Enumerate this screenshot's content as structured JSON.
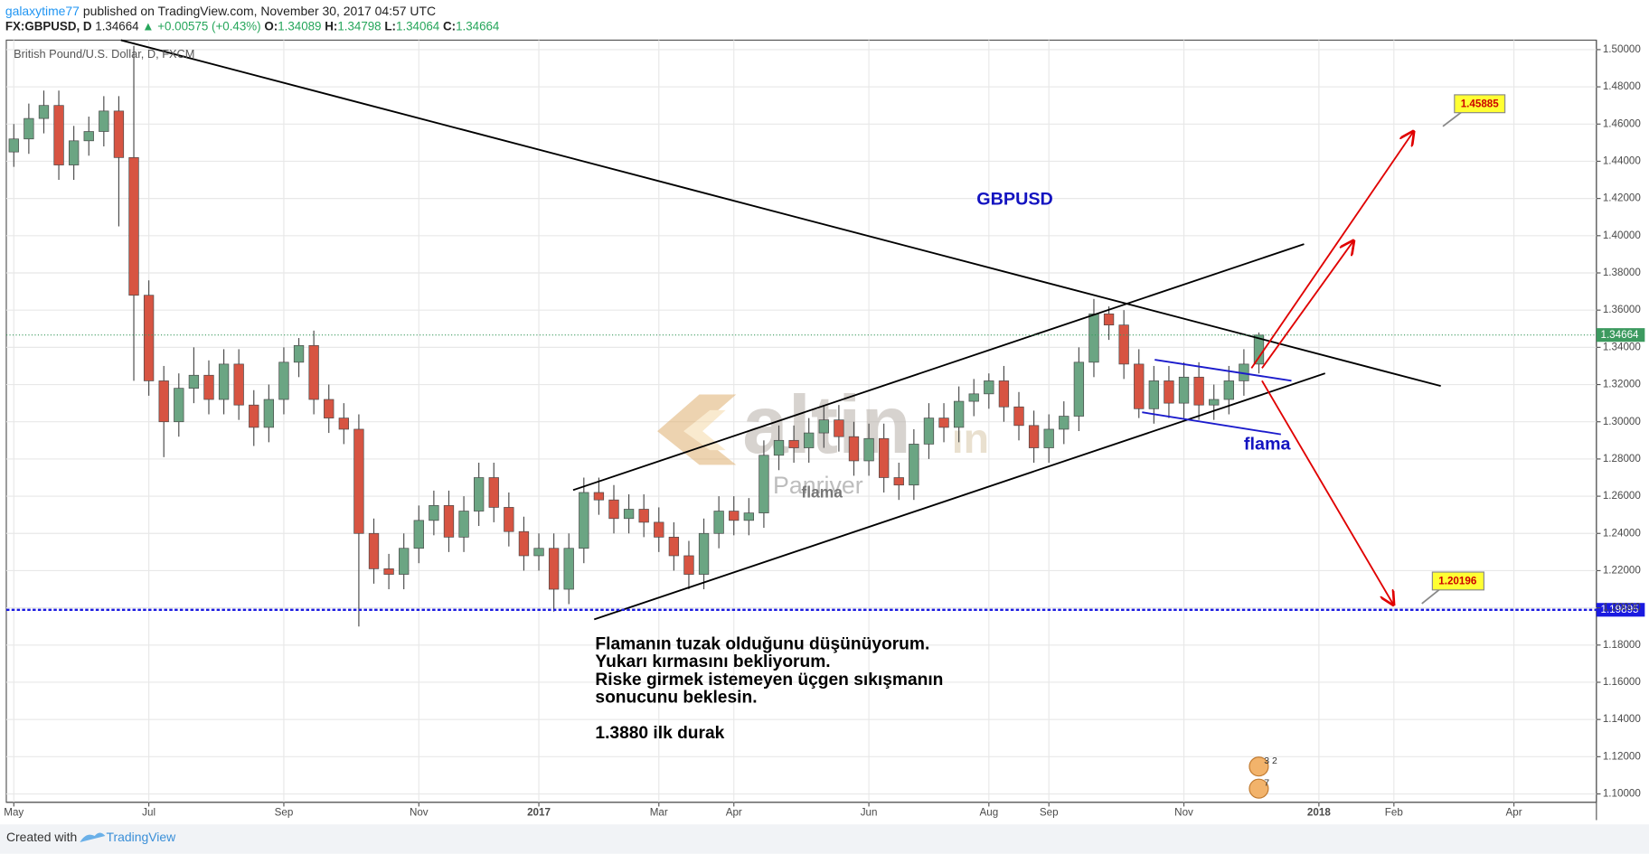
{
  "header": {
    "author": "galaxytime77",
    "published": "published on TradingView.com, November 30, 2017 04:57 UTC",
    "symbol": "FX:GBPUSD, D",
    "price": "1.34664",
    "change": "▲ +0.00575 (+0.43%)",
    "open_label": "O:",
    "open": "1.34089",
    "high_label": "H:",
    "high": "1.34798",
    "low_label": "L:",
    "low": "1.34064",
    "close_label": "C:",
    "close": "1.34664"
  },
  "annotations": {
    "symbol": "GBPUSD",
    "flag": "flama",
    "watermark_flag": "flama",
    "watermark": "altin",
    "watermark_suffix": "in",
    "watermark_sub": "Panriver",
    "target_up": "1.45885",
    "target_down": "1.20196",
    "note": [
      "Flamanın tuzak olduğunu düşünüyorum.",
      "Yukarı kırmasını bekliyorum.",
      "Riske girmek istemeyen üçgen sıkışmanın",
      "sonucunu beklesin.",
      "1.3880 ilk durak"
    ],
    "badge_top": "3 2",
    "badge_bottom": "7"
  },
  "footer": {
    "created_with": "Created with",
    "brand": "TradingView"
  },
  "chart_data": {
    "type": "candlestick",
    "title": "British Pound/U.S. Dollar, D, FXCM",
    "up_color": "#6ba583",
    "down_color": "#d75442",
    "grid": true,
    "categories": [
      "May",
      null,
      null,
      null,
      null,
      null,
      null,
      null,
      null,
      "Jul",
      null,
      null,
      null,
      null,
      null,
      null,
      null,
      null,
      "Sep",
      null,
      null,
      null,
      null,
      null,
      null,
      null,
      null,
      "Nov",
      null,
      null,
      null,
      null,
      null,
      null,
      null,
      "2017",
      null,
      null,
      null,
      null,
      null,
      null,
      null,
      "Mar",
      null,
      null,
      null,
      null,
      "Apr",
      null,
      null,
      null,
      null,
      null,
      null,
      null,
      null,
      "Jun",
      null,
      null,
      null,
      null,
      null,
      null,
      null,
      "Aug",
      null,
      null,
      null,
      "Sep",
      null,
      null,
      null,
      null,
      null,
      null,
      null,
      null,
      "Nov",
      null,
      null,
      null,
      null,
      null,
      null,
      null,
      null,
      "2018",
      null,
      null,
      null,
      null,
      "Feb",
      null,
      null,
      null,
      null,
      null,
      null,
      null,
      "Apr",
      null,
      null,
      null,
      null,
      null
    ],
    "open": [
      1.445,
      1.452,
      1.463,
      1.47,
      1.438,
      1.451,
      1.456,
      1.467,
      1.442,
      1.368,
      1.322,
      1.3,
      1.318,
      1.325,
      1.312,
      1.331,
      1.309,
      1.297,
      1.312,
      1.332,
      1.341,
      1.312,
      1.302,
      1.296,
      1.24,
      1.221,
      1.218,
      1.232,
      1.247,
      1.255,
      1.238,
      1.252,
      1.27,
      1.254,
      1.241,
      1.228,
      1.232,
      1.21,
      1.232,
      1.262,
      1.258,
      1.248,
      1.253,
      1.246,
      1.238,
      1.228,
      1.218,
      1.24,
      1.252,
      1.247,
      1.251,
      1.282,
      1.29,
      1.286,
      1.294,
      1.301,
      1.292,
      1.279,
      1.291,
      1.27,
      1.266,
      1.288,
      1.302,
      1.297,
      1.311,
      1.315,
      1.322,
      1.308,
      1.298,
      1.286,
      1.296,
      1.303,
      1.332,
      1.358,
      1.352,
      1.331,
      1.307,
      1.322,
      1.31,
      1.324,
      1.309,
      1.312,
      1.322,
      1.331,
      null,
      null,
      null,
      null,
      null,
      null,
      null,
      null,
      null,
      null,
      null,
      null,
      null,
      null,
      null,
      null,
      null,
      null,
      null,
      null,
      null,
      null
    ],
    "high": [
      1.46,
      1.471,
      1.478,
      1.478,
      1.459,
      1.464,
      1.475,
      1.475,
      1.502,
      1.376,
      1.33,
      1.326,
      1.34,
      1.333,
      1.339,
      1.339,
      1.317,
      1.32,
      1.34,
      1.345,
      1.349,
      1.32,
      1.31,
      1.304,
      1.248,
      1.229,
      1.24,
      1.255,
      1.263,
      1.263,
      1.26,
      1.278,
      1.278,
      1.262,
      1.249,
      1.24,
      1.24,
      1.24,
      1.27,
      1.27,
      1.266,
      1.261,
      1.261,
      1.254,
      1.246,
      1.236,
      1.248,
      1.26,
      1.26,
      1.259,
      1.29,
      1.298,
      1.298,
      1.302,
      1.309,
      1.309,
      1.3,
      1.299,
      1.299,
      1.278,
      1.296,
      1.31,
      1.31,
      1.319,
      1.323,
      1.326,
      1.33,
      1.316,
      1.306,
      1.304,
      1.311,
      1.34,
      1.366,
      1.362,
      1.36,
      1.339,
      1.33,
      1.33,
      1.332,
      1.332,
      1.32,
      1.33,
      1.339,
      1.348,
      null,
      null,
      null,
      null,
      null,
      null,
      null,
      null,
      null,
      null,
      null,
      null,
      null,
      null,
      null,
      null,
      null,
      null,
      null,
      null,
      null,
      null
    ],
    "low": [
      1.437,
      1.444,
      1.455,
      1.43,
      1.43,
      1.443,
      1.448,
      1.405,
      1.322,
      1.314,
      1.281,
      1.292,
      1.31,
      1.304,
      1.304,
      1.301,
      1.287,
      1.289,
      1.304,
      1.324,
      1.304,
      1.294,
      1.288,
      1.19,
      1.213,
      1.21,
      1.21,
      1.224,
      1.239,
      1.23,
      1.23,
      1.244,
      1.246,
      1.233,
      1.22,
      1.22,
      1.198,
      1.202,
      1.224,
      1.25,
      1.24,
      1.24,
      1.238,
      1.23,
      1.22,
      1.21,
      1.21,
      1.232,
      1.239,
      1.239,
      1.243,
      1.274,
      1.278,
      1.278,
      1.286,
      1.284,
      1.271,
      1.271,
      1.262,
      1.258,
      1.258,
      1.28,
      1.289,
      1.289,
      1.303,
      1.307,
      1.3,
      1.29,
      1.278,
      1.278,
      1.288,
      1.295,
      1.324,
      1.344,
      1.323,
      1.302,
      1.299,
      1.302,
      1.302,
      1.301,
      1.301,
      1.304,
      1.314,
      1.326,
      null,
      null,
      null,
      null,
      null,
      null,
      null,
      null,
      null,
      null,
      null,
      null,
      null,
      null,
      null,
      null,
      null,
      null,
      null,
      null,
      null,
      null
    ],
    "close": [
      1.452,
      1.463,
      1.47,
      1.438,
      1.451,
      1.456,
      1.467,
      1.442,
      1.368,
      1.322,
      1.3,
      1.318,
      1.325,
      1.312,
      1.331,
      1.309,
      1.297,
      1.312,
      1.332,
      1.341,
      1.312,
      1.302,
      1.296,
      1.24,
      1.221,
      1.218,
      1.232,
      1.247,
      1.255,
      1.238,
      1.252,
      1.27,
      1.254,
      1.241,
      1.228,
      1.232,
      1.21,
      1.232,
      1.262,
      1.258,
      1.248,
      1.253,
      1.246,
      1.238,
      1.228,
      1.218,
      1.24,
      1.252,
      1.247,
      1.251,
      1.282,
      1.29,
      1.286,
      1.294,
      1.301,
      1.292,
      1.279,
      1.291,
      1.27,
      1.266,
      1.288,
      1.302,
      1.297,
      1.311,
      1.315,
      1.322,
      1.308,
      1.298,
      1.286,
      1.296,
      1.303,
      1.332,
      1.358,
      1.352,
      1.331,
      1.307,
      1.322,
      1.31,
      1.324,
      1.309,
      1.312,
      1.322,
      1.331,
      1.3466,
      null,
      null,
      null,
      null,
      null,
      null,
      null,
      null,
      null,
      null,
      null,
      null,
      null,
      null,
      null,
      null,
      null,
      null,
      null,
      null,
      null,
      null
    ],
    "ylim": [
      1.0955,
      1.5051
    ],
    "yticks": [
      {
        "value": 1.1,
        "label": "1.10000"
      },
      {
        "value": 1.12,
        "label": "1.12000"
      },
      {
        "value": 1.14,
        "label": "1.14000"
      },
      {
        "value": 1.16,
        "label": "1.16000"
      },
      {
        "value": 1.18,
        "label": "1.18000"
      },
      {
        "value": 1.2,
        "label": "1.20000"
      },
      {
        "value": 1.22,
        "label": "1.22000"
      },
      {
        "value": 1.24,
        "label": "1.24000"
      },
      {
        "value": 1.26,
        "label": "1.26000"
      },
      {
        "value": 1.28,
        "label": "1.28000"
      },
      {
        "value": 1.3,
        "label": "1.30000"
      },
      {
        "value": 1.32,
        "label": "1.32000"
      },
      {
        "value": 1.34,
        "label": "1.34000"
      },
      {
        "value": 1.36,
        "label": "1.36000"
      },
      {
        "value": 1.38,
        "label": "1.38000"
      },
      {
        "value": 1.4,
        "label": "1.40000"
      },
      {
        "value": 1.42,
        "label": "1.42000"
      },
      {
        "value": 1.44,
        "label": "1.44000"
      },
      {
        "value": 1.46,
        "label": "1.46000"
      },
      {
        "value": 1.48,
        "label": "1.48000"
      },
      {
        "value": 1.5,
        "label": "1.50000"
      }
    ],
    "last_price": {
      "value": 1.34664,
      "label": "1.34664"
    },
    "hline": {
      "value": 1.19895,
      "label": "1.19895"
    }
  }
}
